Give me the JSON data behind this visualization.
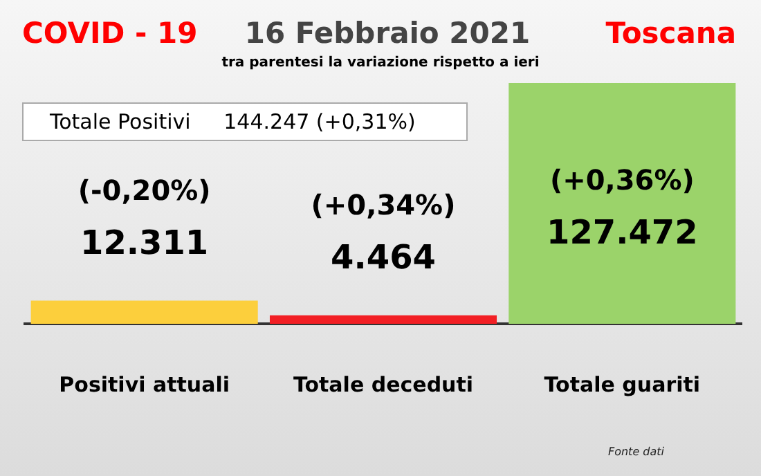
{
  "chart_data": {
    "type": "bar",
    "title": "16 Febbraio 2021",
    "subtitle": "tra parentesi la variazione rispetto a ieri",
    "categories": [
      "Positivi attuali",
      "Totale deceduti",
      "Totale guariti"
    ],
    "values": [
      12311,
      4464,
      127472
    ],
    "colors": [
      "#fccf3c",
      "#f21f24",
      "#9bd36a"
    ],
    "value_labels": [
      "12.311",
      "4.464",
      "127.472"
    ],
    "annotations": [
      "COVID - 19",
      "Toscana",
      "Totale Positivi     144.247 (+0,31%)",
      "(-0,20%)",
      "(+0,34%)",
      "(+0,36%)",
      "Fonte dati"
    ],
    "legend": false
  }
}
